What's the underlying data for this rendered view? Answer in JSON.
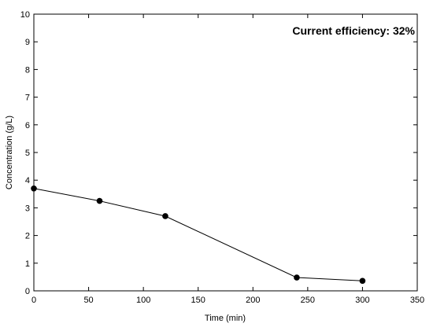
{
  "chart_data": {
    "type": "line",
    "xlabel": "Time (min)",
    "ylabel": "Concentration (g/L)",
    "xlim": [
      0,
      350
    ],
    "ylim": [
      0,
      10
    ],
    "x_ticks": [
      0,
      50,
      100,
      150,
      200,
      250,
      300,
      350
    ],
    "y_ticks": [
      0,
      1,
      2,
      3,
      4,
      5,
      6,
      7,
      8,
      9,
      10
    ],
    "grid": false,
    "legend": "none",
    "annotation": "Current efficiency: 32%",
    "series": [
      {
        "x": [
          0,
          60,
          120,
          240,
          300
        ],
        "y": [
          3.7,
          3.25,
          2.7,
          0.48,
          0.36
        ],
        "color": "#000000",
        "marker": "circle"
      }
    ]
  }
}
